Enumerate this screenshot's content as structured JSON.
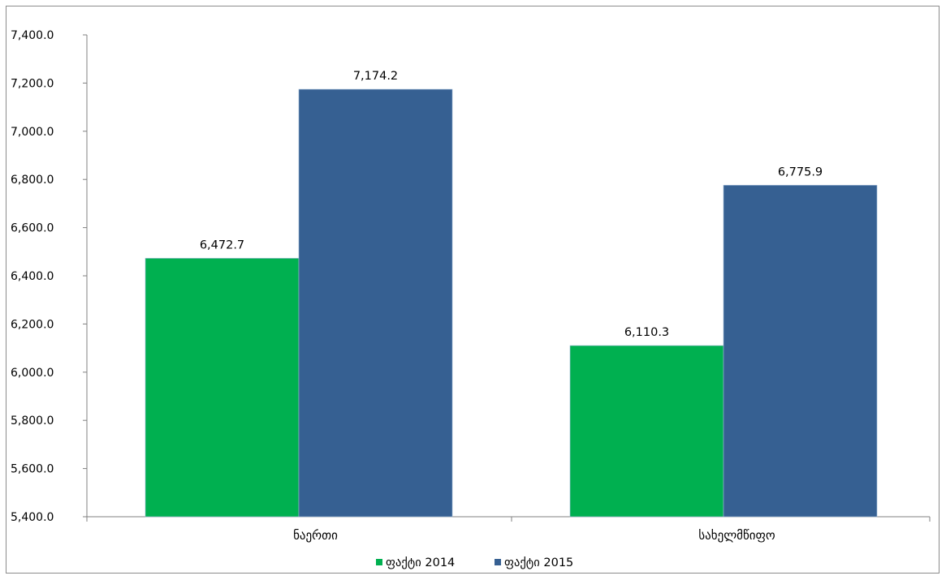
{
  "chart_data": {
    "type": "bar",
    "title": "",
    "xlabel": "",
    "ylabel": "",
    "categories": [
      "ნაერთი",
      "სახელმწიფო"
    ],
    "series": [
      {
        "name": "ფაქტი 2014",
        "values": [
          6472.7,
          6110.3
        ],
        "labels": [
          "6,472.7",
          "6,110.3"
        ],
        "color": "#00b050"
      },
      {
        "name": "ფაქტი 2015",
        "values": [
          7174.2,
          6775.9
        ],
        "labels": [
          "7,174.2",
          "6,775.9"
        ],
        "color": "#366092"
      }
    ],
    "ylim": [
      5400,
      7400
    ],
    "yticks": [
      5400,
      5600,
      5800,
      6000,
      6200,
      6400,
      6600,
      6800,
      7000,
      7200,
      7400
    ],
    "ytick_labels": [
      "5,400.0",
      "5,600.0",
      "5,800.0",
      "6,000.0",
      "6,200.0",
      "6,400.0",
      "6,600.0",
      "6,800.0",
      "7,000.0",
      "7,200.0",
      "7,400.0"
    ],
    "grid": false,
    "legend_position": "bottom"
  }
}
